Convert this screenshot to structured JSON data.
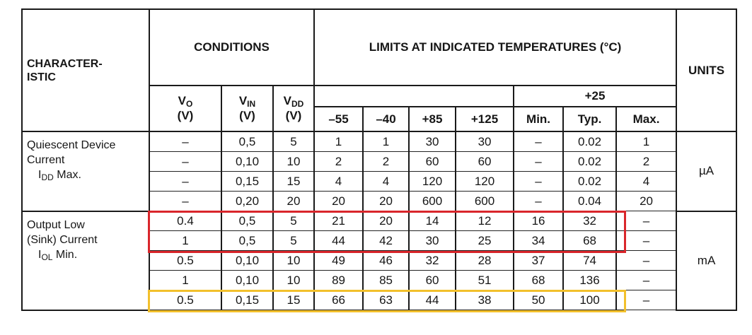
{
  "header": {
    "characteristic": [
      "CHARACTER-",
      "ISTIC"
    ],
    "conditions": "CONDITIONS",
    "limits": "LIMITS AT INDICATED TEMPERATURES (°C)",
    "units": "UNITS",
    "condition_columns": [
      {
        "main": "V",
        "sub": "O",
        "unit": "(V)"
      },
      {
        "main": "V",
        "sub": "IN",
        "unit": "(V)"
      },
      {
        "main": "V",
        "sub": "DD",
        "unit": "(V)"
      }
    ],
    "temperatures": [
      "–55",
      "–40",
      "+85",
      "+125"
    ],
    "room_temp": "+25",
    "room_columns": [
      "Min.",
      "Typ.",
      "Max."
    ]
  },
  "groups": [
    {
      "label": [
        "Quiescent Device",
        "Current"
      ],
      "symbol": {
        "main": "I",
        "sub": "DD",
        "suffix": " Max."
      },
      "units": "µA",
      "rows": [
        [
          "–",
          "0,5",
          "5",
          "1",
          "1",
          "30",
          "30",
          "–",
          "0.02",
          "1"
        ],
        [
          "–",
          "0,10",
          "10",
          "2",
          "2",
          "60",
          "60",
          "–",
          "0.02",
          "2"
        ],
        [
          "–",
          "0,15",
          "15",
          "4",
          "4",
          "120",
          "120",
          "–",
          "0.02",
          "4"
        ],
        [
          "–",
          "0,20",
          "20",
          "20",
          "20",
          "600",
          "600",
          "–",
          "0.04",
          "20"
        ]
      ]
    },
    {
      "label": [
        "Output Low",
        "(Sink) Current"
      ],
      "symbol": {
        "main": "I",
        "sub": "OL",
        "suffix": " Min."
      },
      "units": "mA",
      "rows": [
        [
          "0.4",
          "0,5",
          "5",
          "21",
          "20",
          "14",
          "12",
          "16",
          "32",
          "–"
        ],
        [
          "1",
          "0,5",
          "5",
          "44",
          "42",
          "30",
          "25",
          "34",
          "68",
          "–"
        ],
        [
          "0.5",
          "0,10",
          "10",
          "49",
          "46",
          "32",
          "28",
          "37",
          "74",
          "–"
        ],
        [
          "1",
          "0,10",
          "10",
          "89",
          "85",
          "60",
          "51",
          "68",
          "136",
          "–"
        ],
        [
          "0.5",
          "0,15",
          "15",
          "66",
          "63",
          "44",
          "38",
          "50",
          "100",
          "–"
        ]
      ]
    }
  ]
}
